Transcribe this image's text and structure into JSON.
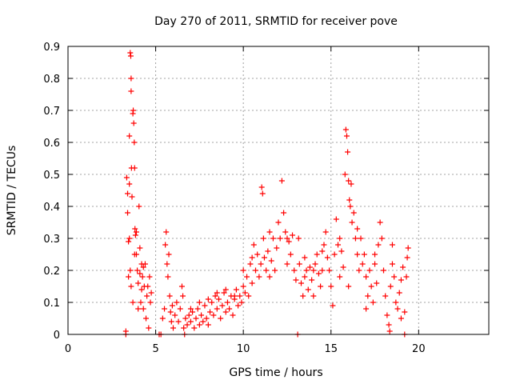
{
  "chart_data": {
    "type": "scatter",
    "title": "Day 270 of 2011, SRMTID for receiver pove",
    "xlabel": "GPS time / hours",
    "ylabel": "SRMTID / TECUs",
    "xlim": [
      0,
      24
    ],
    "ylim": [
      0,
      0.9
    ],
    "xticks": [
      "0",
      "5",
      "10",
      "15",
      "20"
    ],
    "yticks": [
      "0",
      "0.1",
      "0.2",
      "0.3",
      "0.4",
      "0.5",
      "0.6",
      "0.7",
      "0.8",
      "0.9"
    ],
    "grid": true,
    "marker": "+",
    "color": "#ff0000",
    "series": [
      {
        "name": "SRMTID",
        "points": [
          [
            3.3,
            0.0
          ],
          [
            3.3,
            0.01
          ],
          [
            3.35,
            0.49
          ],
          [
            3.4,
            0.44
          ],
          [
            3.4,
            0.38
          ],
          [
            3.45,
            0.29
          ],
          [
            3.45,
            0.18
          ],
          [
            3.5,
            0.47
          ],
          [
            3.5,
            0.62
          ],
          [
            3.55,
            0.88
          ],
          [
            3.58,
            0.87
          ],
          [
            3.6,
            0.8
          ],
          [
            3.6,
            0.76
          ],
          [
            3.62,
            0.52
          ],
          [
            3.65,
            0.43
          ],
          [
            3.7,
            0.69
          ],
          [
            3.72,
            0.7
          ],
          [
            3.75,
            0.66
          ],
          [
            3.78,
            0.6
          ],
          [
            3.8,
            0.52
          ],
          [
            3.82,
            0.33
          ],
          [
            3.85,
            0.31
          ],
          [
            3.9,
            0.25
          ],
          [
            3.95,
            0.2
          ],
          [
            4.0,
            0.16
          ],
          [
            4.05,
            0.4
          ],
          [
            4.1,
            0.27
          ],
          [
            4.15,
            0.1
          ],
          [
            4.2,
            0.22
          ],
          [
            4.25,
            0.18
          ],
          [
            4.3,
            0.08
          ],
          [
            4.35,
            0.15
          ],
          [
            4.4,
            0.22
          ],
          [
            4.45,
            0.05
          ],
          [
            4.5,
            0.12
          ],
          [
            4.55,
            0.15
          ],
          [
            4.6,
            0.02
          ],
          [
            4.65,
            0.18
          ],
          [
            4.7,
            0.1
          ],
          [
            4.75,
            0.13
          ],
          [
            3.5,
            0.3
          ],
          [
            3.55,
            0.2
          ],
          [
            3.6,
            0.15
          ],
          [
            3.7,
            0.1
          ],
          [
            3.8,
            0.25
          ],
          [
            3.9,
            0.32
          ],
          [
            4.0,
            0.08
          ],
          [
            4.1,
            0.19
          ],
          [
            4.2,
            0.14
          ],
          [
            4.3,
            0.21
          ],
          [
            5.2,
            0.0
          ],
          [
            5.3,
            0.0
          ],
          [
            5.4,
            0.05
          ],
          [
            5.5,
            0.08
          ],
          [
            5.55,
            0.28
          ],
          [
            5.6,
            0.32
          ],
          [
            5.65,
            0.22
          ],
          [
            5.7,
            0.18
          ],
          [
            5.75,
            0.25
          ],
          [
            5.8,
            0.12
          ],
          [
            5.85,
            0.07
          ],
          [
            5.9,
            0.04
          ],
          [
            5.95,
            0.09
          ],
          [
            6.0,
            0.02
          ],
          [
            6.1,
            0.06
          ],
          [
            6.2,
            0.1
          ],
          [
            6.3,
            0.04
          ],
          [
            6.4,
            0.08
          ],
          [
            6.5,
            0.15
          ],
          [
            6.55,
            0.12
          ],
          [
            6.6,
            0.02
          ],
          [
            6.65,
            0.0
          ],
          [
            6.7,
            0.05
          ],
          [
            6.8,
            0.03
          ],
          [
            6.9,
            0.06
          ],
          [
            7.0,
            0.04
          ],
          [
            7.1,
            0.07
          ],
          [
            7.2,
            0.02
          ],
          [
            7.3,
            0.05
          ],
          [
            7.4,
            0.08
          ],
          [
            7.5,
            0.03
          ],
          [
            7.6,
            0.06
          ],
          [
            7.7,
            0.04
          ],
          [
            7.8,
            0.09
          ],
          [
            7.9,
            0.05
          ],
          [
            8.0,
            0.03
          ],
          [
            8.1,
            0.07
          ],
          [
            8.2,
            0.1
          ],
          [
            8.3,
            0.06
          ],
          [
            8.4,
            0.12
          ],
          [
            8.5,
            0.08
          ],
          [
            8.6,
            0.11
          ],
          [
            8.7,
            0.05
          ],
          [
            8.8,
            0.09
          ],
          [
            8.9,
            0.13
          ],
          [
            9.0,
            0.07
          ],
          [
            9.1,
            0.1
          ],
          [
            9.2,
            0.08
          ],
          [
            9.3,
            0.12
          ],
          [
            9.4,
            0.06
          ],
          [
            9.5,
            0.11
          ],
          [
            9.6,
            0.14
          ],
          [
            9.7,
            0.09
          ],
          [
            9.8,
            0.12
          ],
          [
            9.9,
            0.1
          ],
          [
            10.0,
            0.15
          ],
          [
            10.1,
            0.13
          ],
          [
            10.2,
            0.18
          ],
          [
            10.3,
            0.12
          ],
          [
            10.4,
            0.22
          ],
          [
            10.5,
            0.16
          ],
          [
            10.6,
            0.28
          ],
          [
            10.7,
            0.2
          ],
          [
            10.8,
            0.25
          ],
          [
            10.9,
            0.18
          ],
          [
            11.0,
            0.22
          ],
          [
            11.05,
            0.46
          ],
          [
            11.1,
            0.44
          ],
          [
            11.15,
            0.3
          ],
          [
            11.2,
            0.24
          ],
          [
            11.3,
            0.2
          ],
          [
            11.4,
            0.26
          ],
          [
            11.5,
            0.18
          ],
          [
            11.6,
            0.23
          ],
          [
            11.7,
            0.3
          ],
          [
            11.8,
            0.2
          ],
          [
            11.9,
            0.27
          ],
          [
            12.0,
            0.35
          ],
          [
            12.1,
            0.3
          ],
          [
            12.2,
            0.48
          ],
          [
            12.3,
            0.38
          ],
          [
            12.4,
            0.32
          ],
          [
            12.5,
            0.22
          ],
          [
            12.6,
            0.29
          ],
          [
            12.7,
            0.25
          ],
          [
            12.8,
            0.31
          ],
          [
            12.9,
            0.2
          ],
          [
            13.0,
            0.17
          ],
          [
            13.1,
            0.0
          ],
          [
            13.15,
            0.3
          ],
          [
            13.2,
            0.22
          ],
          [
            13.3,
            0.16
          ],
          [
            13.4,
            0.12
          ],
          [
            13.5,
            0.18
          ],
          [
            13.6,
            0.2
          ],
          [
            13.7,
            0.14
          ],
          [
            13.8,
            0.21
          ],
          [
            13.9,
            0.17
          ],
          [
            14.0,
            0.12
          ],
          [
            14.1,
            0.22
          ],
          [
            14.2,
            0.25
          ],
          [
            14.3,
            0.19
          ],
          [
            14.4,
            0.15
          ],
          [
            14.5,
            0.2
          ],
          [
            14.6,
            0.28
          ],
          [
            14.7,
            0.32
          ],
          [
            14.8,
            0.24
          ],
          [
            14.9,
            0.2
          ],
          [
            15.0,
            0.15
          ],
          [
            15.1,
            0.09
          ],
          [
            15.2,
            0.25
          ],
          [
            15.3,
            0.36
          ],
          [
            15.4,
            0.28
          ],
          [
            15.5,
            0.3
          ],
          [
            15.6,
            0.26
          ],
          [
            15.7,
            0.21
          ],
          [
            15.8,
            0.5
          ],
          [
            15.85,
            0.64
          ],
          [
            15.9,
            0.62
          ],
          [
            15.95,
            0.57
          ],
          [
            16.0,
            0.48
          ],
          [
            16.05,
            0.42
          ],
          [
            16.1,
            0.4
          ],
          [
            16.15,
            0.47
          ],
          [
            16.2,
            0.35
          ],
          [
            16.3,
            0.38
          ],
          [
            16.4,
            0.3
          ],
          [
            16.5,
            0.25
          ],
          [
            16.6,
            0.2
          ],
          [
            16.7,
            0.3
          ],
          [
            16.8,
            0.22
          ],
          [
            16.9,
            0.25
          ],
          [
            17.0,
            0.18
          ],
          [
            17.1,
            0.12
          ],
          [
            17.2,
            0.2
          ],
          [
            17.3,
            0.15
          ],
          [
            17.4,
            0.1
          ],
          [
            17.5,
            0.22
          ],
          [
            17.6,
            0.16
          ],
          [
            17.7,
            0.28
          ],
          [
            17.8,
            0.35
          ],
          [
            17.9,
            0.3
          ],
          [
            18.0,
            0.2
          ],
          [
            18.1,
            0.12
          ],
          [
            18.2,
            0.06
          ],
          [
            18.3,
            0.03
          ],
          [
            18.35,
            0.01
          ],
          [
            18.4,
            0.15
          ],
          [
            18.5,
            0.22
          ],
          [
            18.6,
            0.18
          ],
          [
            18.7,
            0.1
          ],
          [
            18.8,
            0.08
          ],
          [
            18.9,
            0.13
          ],
          [
            19.0,
            0.17
          ],
          [
            19.1,
            0.21
          ],
          [
            19.2,
            0.0
          ],
          [
            19.3,
            0.18
          ],
          [
            19.35,
            0.24
          ],
          [
            19.4,
            0.27
          ],
          [
            19.2,
            0.07
          ],
          [
            7.0,
            0.08
          ],
          [
            7.5,
            0.1
          ],
          [
            8.0,
            0.11
          ],
          [
            8.5,
            0.13
          ],
          [
            9.0,
            0.14
          ],
          [
            9.5,
            0.12
          ],
          [
            10.0,
            0.2
          ],
          [
            10.5,
            0.24
          ],
          [
            11.5,
            0.32
          ],
          [
            12.5,
            0.3
          ],
          [
            13.5,
            0.24
          ],
          [
            14.5,
            0.26
          ],
          [
            15.5,
            0.18
          ],
          [
            16.5,
            0.33
          ],
          [
            17.5,
            0.25
          ],
          [
            18.5,
            0.28
          ],
          [
            19.0,
            0.05
          ],
          [
            17.0,
            0.08
          ],
          [
            16.0,
            0.15
          ],
          [
            14.0,
            0.2
          ]
        ]
      }
    ]
  }
}
